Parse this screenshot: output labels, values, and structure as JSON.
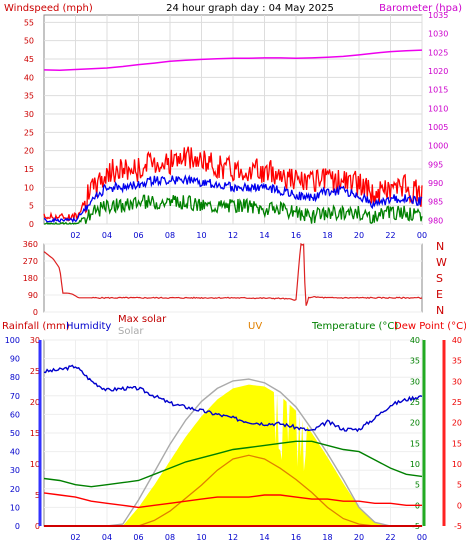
{
  "header": {
    "wind_label": "Windspeed (mph)",
    "title": "24 hour graph day : 04 May 2025",
    "baro_label": "Barometer (hpa)"
  },
  "bottom_header": {
    "rain_label": "Rainfall (mm)",
    "humidity_label": "Humidity",
    "maxsolar_label": "Max solar",
    "solar_label": "Solar",
    "uv_label": "UV",
    "temp_label": "Temperature (°C)",
    "dew_label": "Dew Point (°C)"
  },
  "compass": [
    "N",
    "W",
    "S",
    "E",
    "N"
  ],
  "colors": {
    "wind_gust": "#ff0000",
    "wind_avg": "#0000ee",
    "wind_low": "#008000",
    "barometer": "#ee00ee",
    "direction": "#dd2222",
    "rain": "#d00000",
    "humidity": "#0000cc",
    "maxsolar": "#c00000",
    "solar": "#aaaaaa",
    "uv": "#e08000",
    "temperature": "#008000",
    "dewpoint": "#ff0000",
    "solar_fill": "#ffff00"
  },
  "chart_data": [
    {
      "type": "line",
      "title": "24 hour graph day : 04 May 2025",
      "ylabel": "Windspeed (mph)",
      "y2label": "Barometer (hpa)",
      "x_ticks": [
        "02",
        "04",
        "06",
        "08",
        "10",
        "12",
        "14",
        "16",
        "18",
        "20",
        "22",
        "00"
      ],
      "y_ticks": [
        "0",
        "5",
        "10",
        "15",
        "20",
        "25",
        "30",
        "35",
        "40",
        "45",
        "50",
        "55"
      ],
      "y2_ticks": [
        "980",
        "985",
        "990",
        "995",
        "1000",
        "1005",
        "1010",
        "1015",
        "1020",
        "1025",
        "1030",
        "1035"
      ],
      "ylim": [
        0,
        57
      ],
      "y2lim": [
        979,
        1035
      ],
      "x_hours": [
        0,
        1,
        2,
        3,
        4,
        5,
        6,
        7,
        8,
        9,
        10,
        11,
        12,
        13,
        14,
        15,
        16,
        17,
        18,
        19,
        20,
        21,
        22,
        23,
        24
      ],
      "series": [
        {
          "name": "gust",
          "values": [
            2,
            2,
            2,
            9,
            14,
            15,
            15,
            17,
            17,
            18,
            17,
            16,
            15,
            15,
            14,
            14,
            12,
            11,
            12,
            12,
            11,
            8,
            10,
            10,
            8
          ]
        },
        {
          "name": "average",
          "values": [
            1,
            1,
            1,
            6,
            10,
            10,
            11,
            12,
            12,
            12,
            11,
            11,
            10,
            10,
            10,
            9,
            8,
            7,
            9,
            9,
            8,
            5,
            7,
            7,
            6
          ]
        },
        {
          "name": "low",
          "values": [
            0,
            0,
            0,
            3,
            5,
            5,
            6,
            6,
            6,
            6,
            5,
            5,
            5,
            5,
            4,
            4,
            3,
            2,
            3,
            3,
            3,
            2,
            3,
            3,
            2
          ]
        },
        {
          "name": "barometer",
          "values": [
            1020.3,
            1020.2,
            1020.4,
            1020.6,
            1020.8,
            1021.2,
            1021.7,
            1022.1,
            1022.6,
            1022.9,
            1023.1,
            1023.3,
            1023.4,
            1023.4,
            1023.5,
            1023.5,
            1023.4,
            1023.5,
            1023.7,
            1023.9,
            1024.3,
            1024.8,
            1025.2,
            1025.4,
            1025.6
          ]
        }
      ]
    },
    {
      "type": "line",
      "x_ticks": [
        "02",
        "04",
        "06",
        "08",
        "10",
        "12",
        "14",
        "16",
        "18",
        "20",
        "22",
        "00"
      ],
      "y_ticks": [
        "0",
        "90",
        "180",
        "270",
        "360"
      ],
      "ylim": [
        0,
        360
      ],
      "x_hours": [
        0,
        0.3,
        0.6,
        1,
        1.2,
        1.5,
        1.8,
        2.2,
        3,
        5,
        8,
        12,
        15,
        16,
        16.3,
        16.5,
        16.6,
        16.8,
        17,
        18,
        20,
        22,
        24
      ],
      "values": [
        320,
        300,
        280,
        230,
        100,
        100,
        95,
        75,
        75,
        75,
        75,
        75,
        72,
        65,
        360,
        355,
        20,
        75,
        80,
        75,
        75,
        75,
        75
      ]
    },
    {
      "type": "line",
      "x_ticks": [
        "02",
        "04",
        "06",
        "08",
        "10",
        "12",
        "14",
        "16",
        "18",
        "20",
        "22",
        "00"
      ],
      "y_ticks_rain": [
        "0",
        "5",
        "10",
        "15",
        "20",
        "25",
        "30"
      ],
      "y_ticks_humidity": [
        "0",
        "10",
        "20",
        "30",
        "40",
        "50",
        "60",
        "70",
        "80",
        "90",
        "100"
      ],
      "y_ticks_temp": [
        "-5",
        "0",
        "5",
        "10",
        "15",
        "20",
        "25",
        "30",
        "35",
        "40"
      ],
      "rain_lim": [
        0,
        30
      ],
      "humidity_lim": [
        0,
        100
      ],
      "temp_lim": [
        -5,
        40
      ],
      "x_hours": [
        0,
        1,
        2,
        3,
        4,
        5,
        6,
        7,
        8,
        9,
        10,
        11,
        12,
        13,
        14,
        15,
        16,
        17,
        18,
        19,
        20,
        21,
        22,
        23,
        24
      ],
      "series": [
        {
          "name": "Humidity",
          "values": [
            83,
            84,
            86,
            78,
            73,
            74,
            74,
            70,
            66,
            64,
            62,
            60,
            58,
            56,
            55,
            55,
            53,
            51,
            56,
            52,
            52,
            58,
            65,
            68,
            70
          ]
        },
        {
          "name": "Temperature (°C)",
          "values": [
            6.5,
            6,
            5,
            4.5,
            5,
            5.5,
            6,
            7.5,
            9,
            10.5,
            11.5,
            12.5,
            13.5,
            14,
            14.5,
            15,
            15.5,
            15.5,
            14.5,
            13.5,
            13,
            11,
            9,
            7.5,
            7
          ]
        },
        {
          "name": "Dew Point (°C)",
          "values": [
            3,
            2.5,
            2,
            1,
            0.5,
            0,
            -0.5,
            0,
            0.5,
            1,
            1.5,
            2,
            2,
            2,
            2.5,
            2.5,
            2,
            1.5,
            1.5,
            1,
            1,
            0.5,
            0.5,
            0,
            0
          ]
        },
        {
          "name": "Solar",
          "values": [
            0,
            0,
            0,
            0,
            0,
            0,
            100,
            220,
            350,
            480,
            590,
            680,
            740,
            760,
            750,
            700,
            620,
            500,
            370,
            230,
            100,
            20,
            0,
            0,
            0
          ]
        },
        {
          "name": "Max solar",
          "values": [
            0,
            0,
            0,
            0,
            0,
            10,
            140,
            290,
            440,
            570,
            670,
            740,
            780,
            790,
            770,
            720,
            640,
            520,
            390,
            250,
            100,
            20,
            0,
            0,
            0
          ]
        },
        {
          "name": "UV",
          "values": [
            0,
            0,
            0,
            0,
            0,
            0,
            0,
            0.3,
            0.8,
            1.5,
            2.2,
            3,
            3.6,
            3.8,
            3.6,
            3.1,
            2.5,
            1.8,
            1,
            0.4,
            0.1,
            0,
            0,
            0,
            0
          ]
        },
        {
          "name": "Rainfall (mm)",
          "values": [
            0,
            0,
            0,
            0,
            0,
            0,
            0,
            0,
            0,
            0,
            0,
            0,
            0,
            0,
            0,
            0,
            0,
            0,
            0,
            0,
            0,
            0,
            0,
            0,
            0
          ]
        }
      ]
    }
  ]
}
